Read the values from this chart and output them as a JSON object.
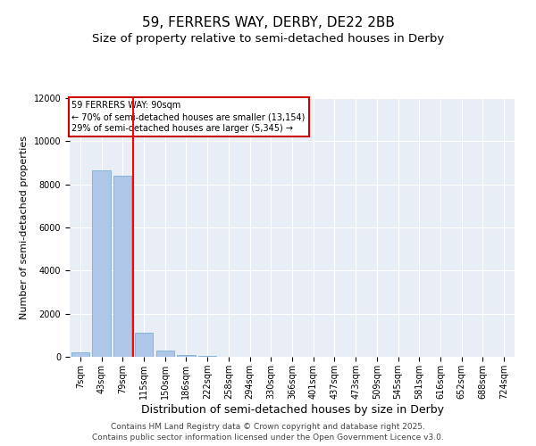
{
  "title": "59, FERRERS WAY, DERBY, DE22 2BB",
  "subtitle": "Size of property relative to semi-detached houses in Derby",
  "xlabel": "Distribution of semi-detached houses by size in Derby",
  "ylabel": "Number of semi-detached properties",
  "bin_labels": [
    "7sqm",
    "43sqm",
    "79sqm",
    "115sqm",
    "150sqm",
    "186sqm",
    "222sqm",
    "258sqm",
    "294sqm",
    "330sqm",
    "366sqm",
    "401sqm",
    "437sqm",
    "473sqm",
    "509sqm",
    "545sqm",
    "581sqm",
    "616sqm",
    "652sqm",
    "688sqm",
    "724sqm"
  ],
  "bar_heights": [
    200,
    8650,
    8400,
    1100,
    300,
    80,
    30,
    5,
    0,
    0,
    0,
    0,
    0,
    0,
    0,
    0,
    0,
    0,
    0,
    0,
    0
  ],
  "bar_color": "#aec6e8",
  "bar_edge_color": "#7aafd4",
  "background_color": "#e8eef5",
  "red_line_x": 2.5,
  "ylim": [
    0,
    12000
  ],
  "yticks": [
    0,
    2000,
    4000,
    6000,
    8000,
    10000,
    12000
  ],
  "annotation_text": "59 FERRERS WAY: 90sqm\n← 70% of semi-detached houses are smaller (13,154)\n29% of semi-detached houses are larger (5,345) →",
  "annotation_box_color": "#ffffff",
  "annotation_box_edge_color": "#cc0000",
  "footer_line1": "Contains HM Land Registry data © Crown copyright and database right 2025.",
  "footer_line2": "Contains public sector information licensed under the Open Government Licence v3.0.",
  "title_fontsize": 11,
  "subtitle_fontsize": 9.5,
  "xlabel_fontsize": 9,
  "ylabel_fontsize": 8,
  "tick_fontsize": 7,
  "footer_fontsize": 6.5,
  "annotation_fontsize": 7
}
